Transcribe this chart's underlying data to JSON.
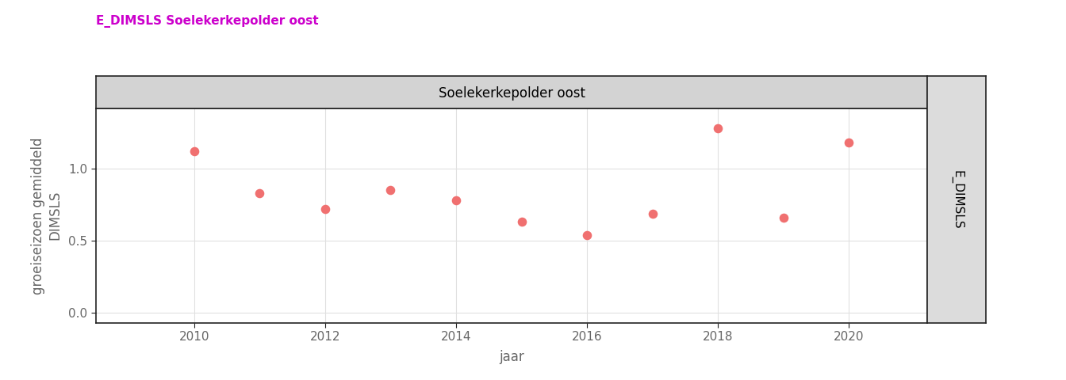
{
  "title_left": "E_DIMSLS Soelekerkepolder oost",
  "panel_title": "Soelekerkepolder oost",
  "right_label": "E_DIMSLS",
  "xlabel": "jaar",
  "ylabel": "groeiseizoen gemiddeld\nDIMSLS",
  "years": [
    2010,
    2011,
    2012,
    2013,
    2014,
    2015,
    2016,
    2017,
    2018,
    2019,
    2020
  ],
  "values": [
    1.12,
    0.83,
    0.72,
    0.85,
    0.78,
    0.63,
    0.54,
    0.69,
    1.28,
    0.66,
    1.18
  ],
  "dot_color": "#F07070",
  "dot_size": 70,
  "xlim": [
    2008.5,
    2021.2
  ],
  "ylim": [
    -0.07,
    1.42
  ],
  "yticks": [
    0.0,
    0.5,
    1.0
  ],
  "xticks": [
    2010,
    2012,
    2014,
    2016,
    2018,
    2020
  ],
  "grid_color": "#E0E0E0",
  "background_plot": "#FFFFFF",
  "background_fig": "#FFFFFF",
  "panel_header_color": "#D3D3D3",
  "right_panel_color": "#DCDCDC",
  "title_color": "#CC00CC",
  "axis_text_color": "#666666",
  "border_color": "#222222",
  "title_fontsize": 11,
  "label_fontsize": 12,
  "tick_fontsize": 11
}
